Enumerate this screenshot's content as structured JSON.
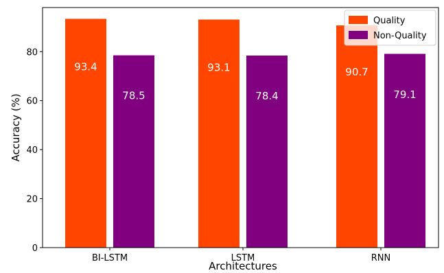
{
  "chart_data": {
    "type": "bar",
    "categories": [
      "BI-LSTM",
      "LSTM",
      "RNN"
    ],
    "series": [
      {
        "name": "Quality",
        "values": [
          93.4,
          93.1,
          90.7
        ],
        "color": "#ff4500"
      },
      {
        "name": "Non-Quality",
        "values": [
          78.5,
          78.4,
          79.1
        ],
        "color": "#800080"
      }
    ],
    "data_labels": [
      [
        "93.4",
        "93.1",
        "90.7"
      ],
      [
        "78.5",
        "78.4",
        "79.1"
      ]
    ],
    "xlabel": "Architectures",
    "ylabel": "Accuracy (%)",
    "ylim": [
      0,
      98
    ],
    "yticks": [
      0,
      20,
      40,
      60,
      80
    ],
    "ytick_labels": [
      "0",
      "20",
      "40",
      "60",
      "80"
    ],
    "grid": false,
    "legend_position": "top-right"
  }
}
